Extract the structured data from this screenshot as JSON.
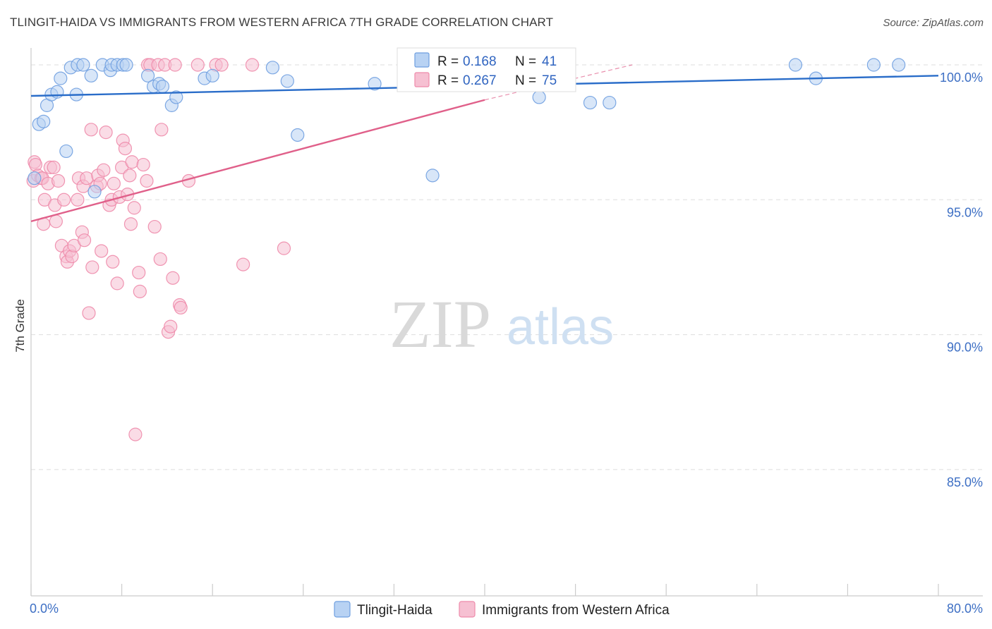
{
  "title": "TLINGIT-HAIDA VS IMMIGRANTS FROM WESTERN AFRICA 7TH GRADE CORRELATION CHART",
  "source": "Source: ZipAtlas.com",
  "watermark": {
    "zip": "ZIP",
    "atlas": "atlas"
  },
  "colors": {
    "blue": "#6f9fe0",
    "blue_fill": "#b8d2f3",
    "blue_line": "#2a6dc9",
    "pink": "#ee8aaa",
    "pink_fill": "#f6c0d2",
    "pink_line": "#e0608a",
    "grid": "#dddddd",
    "tick_text": "#3d6fc4"
  },
  "legend": {
    "r_label": "R =",
    "n_label": "N =",
    "series1": {
      "r": "0.168",
      "n": "41"
    },
    "series2": {
      "r": "0.267",
      "n": "75"
    }
  },
  "chart_data": {
    "type": "scatter",
    "title": "TLINGIT-HAIDA VS IMMIGRANTS FROM WESTERN AFRICA 7TH GRADE CORRELATION CHART",
    "xlabel": "",
    "ylabel": "7th Grade",
    "xlim": [
      0,
      80
    ],
    "ylim": [
      80.5,
      100.8
    ],
    "x_tick_labels": [
      "0.0%",
      "80.0%"
    ],
    "y_ticks": [
      85,
      90,
      95,
      100
    ],
    "y_tick_labels": [
      "85.0%",
      "90.0%",
      "95.0%",
      "100.0%"
    ],
    "legend_position": "top-center",
    "series": [
      {
        "name": "Tlingit-Haida",
        "color": "#6f9fe0",
        "r": 0.168,
        "n": 41,
        "trend": {
          "x": [
            0,
            80
          ],
          "y": [
            98.85,
            99.6
          ]
        },
        "points": [
          [
            0.7,
            97.8
          ],
          [
            1.1,
            97.9
          ],
          [
            1.4,
            98.5
          ],
          [
            1.8,
            98.9
          ],
          [
            2.3,
            99.0
          ],
          [
            2.6,
            99.5
          ],
          [
            3.1,
            96.8
          ],
          [
            3.5,
            99.9
          ],
          [
            4.0,
            98.9
          ],
          [
            4.1,
            100.0
          ],
          [
            4.6,
            100.0
          ],
          [
            5.3,
            99.6
          ],
          [
            5.6,
            95.3
          ],
          [
            6.3,
            100.0
          ],
          [
            7.0,
            99.8
          ],
          [
            7.1,
            100.0
          ],
          [
            7.6,
            100.0
          ],
          [
            8.1,
            100.0
          ],
          [
            8.4,
            100.0
          ],
          [
            10.3,
            99.6
          ],
          [
            10.8,
            99.2
          ],
          [
            11.3,
            99.3
          ],
          [
            11.6,
            99.2
          ],
          [
            12.4,
            98.5
          ],
          [
            12.8,
            98.8
          ],
          [
            15.3,
            99.5
          ],
          [
            16.0,
            99.6
          ],
          [
            21.3,
            99.9
          ],
          [
            22.6,
            99.4
          ],
          [
            23.5,
            97.4
          ],
          [
            30.3,
            99.3
          ],
          [
            35.4,
            95.9
          ],
          [
            36.0,
            99.8
          ],
          [
            44.8,
            98.8
          ],
          [
            49.3,
            98.6
          ],
          [
            51.0,
            98.6
          ],
          [
            67.4,
            100.0
          ],
          [
            69.2,
            99.5
          ],
          [
            74.3,
            100.0
          ],
          [
            76.5,
            100.0
          ],
          [
            0.3,
            95.8
          ]
        ]
      },
      {
        "name": "Immigrants from Western Africa",
        "color": "#ee8aaa",
        "r": 0.267,
        "n": 75,
        "trend": {
          "x": [
            0,
            40
          ],
          "y": [
            94.2,
            98.7
          ]
        },
        "trend_extension": {
          "x": [
            40,
            53
          ],
          "y": [
            98.7,
            100.0
          ]
        },
        "points": [
          [
            0.2,
            95.7
          ],
          [
            0.3,
            96.4
          ],
          [
            0.4,
            96.3
          ],
          [
            0.6,
            95.9
          ],
          [
            0.9,
            95.8
          ],
          [
            1.0,
            95.8
          ],
          [
            1.1,
            94.1
          ],
          [
            1.2,
            95.0
          ],
          [
            1.5,
            95.6
          ],
          [
            1.7,
            96.2
          ],
          [
            2.0,
            96.2
          ],
          [
            2.1,
            94.8
          ],
          [
            2.2,
            94.2
          ],
          [
            2.4,
            95.7
          ],
          [
            2.7,
            93.3
          ],
          [
            2.9,
            95.0
          ],
          [
            3.1,
            92.9
          ],
          [
            3.2,
            92.7
          ],
          [
            3.4,
            93.1
          ],
          [
            3.6,
            92.9
          ],
          [
            3.8,
            93.3
          ],
          [
            4.1,
            95.0
          ],
          [
            4.2,
            95.8
          ],
          [
            4.5,
            93.8
          ],
          [
            4.6,
            95.5
          ],
          [
            4.7,
            93.5
          ],
          [
            4.9,
            95.8
          ],
          [
            5.1,
            90.8
          ],
          [
            5.3,
            97.6
          ],
          [
            5.4,
            92.5
          ],
          [
            5.8,
            95.5
          ],
          [
            5.9,
            95.9
          ],
          [
            6.1,
            95.6
          ],
          [
            6.2,
            93.1
          ],
          [
            6.4,
            96.1
          ],
          [
            6.6,
            97.5
          ],
          [
            6.9,
            94.8
          ],
          [
            7.1,
            95.0
          ],
          [
            7.2,
            92.7
          ],
          [
            7.3,
            95.6
          ],
          [
            7.6,
            91.9
          ],
          [
            7.8,
            95.1
          ],
          [
            8.0,
            96.2
          ],
          [
            8.1,
            97.2
          ],
          [
            8.3,
            96.9
          ],
          [
            8.5,
            95.2
          ],
          [
            8.7,
            95.9
          ],
          [
            8.8,
            94.1
          ],
          [
            8.9,
            96.4
          ],
          [
            9.1,
            94.7
          ],
          [
            9.2,
            86.3
          ],
          [
            9.5,
            92.3
          ],
          [
            9.6,
            91.6
          ],
          [
            9.9,
            96.3
          ],
          [
            10.2,
            95.7
          ],
          [
            10.3,
            100.0
          ],
          [
            10.5,
            100.0
          ],
          [
            10.9,
            94.0
          ],
          [
            11.2,
            100.0
          ],
          [
            11.4,
            92.8
          ],
          [
            11.5,
            97.6
          ],
          [
            11.8,
            100.0
          ],
          [
            12.1,
            90.1
          ],
          [
            12.3,
            90.3
          ],
          [
            12.5,
            92.1
          ],
          [
            12.7,
            100.0
          ],
          [
            13.1,
            91.1
          ],
          [
            13.2,
            91.0
          ],
          [
            13.9,
            95.7
          ],
          [
            14.7,
            100.0
          ],
          [
            16.3,
            100.0
          ],
          [
            16.8,
            100.0
          ],
          [
            18.7,
            92.6
          ],
          [
            19.5,
            100.0
          ],
          [
            22.3,
            93.2
          ]
        ]
      }
    ]
  }
}
